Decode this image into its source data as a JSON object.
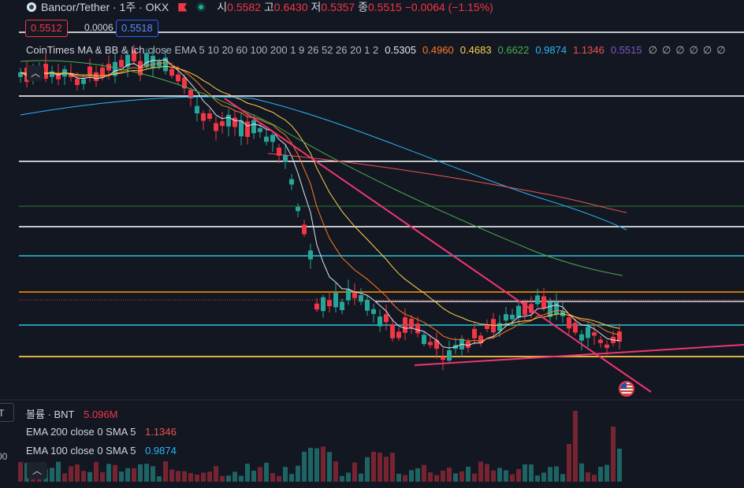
{
  "header": {
    "symbol": "Bancor/Tether · 1주 · OKX",
    "open_label": "시",
    "open": "0.5582",
    "high_label": "고",
    "high": "0.6430",
    "low_label": "저",
    "low": "0.5357",
    "close_label": "종",
    "close": "0.5515",
    "change": "−0.0064 (−1.15%)"
  },
  "price_boxes": {
    "sell": "0.5512",
    "spread": "0.0006",
    "buy": "0.5518"
  },
  "indicator": {
    "name": "CoinTimes MA & BB & Ich",
    "params": "close EMA 5 10 20 60 100 200 1 9 26 52 26 20 1 2",
    "values": [
      "0.5305",
      "0.4960",
      "0.4683",
      "0.6622",
      "0.9874",
      "1.1346",
      "0.5515"
    ],
    "slashes": [
      "∅",
      "∅",
      "∅",
      "∅",
      "∅",
      "∅"
    ]
  },
  "volume_pane": {
    "volume_label": "볼륨 · BNT",
    "volume_value": "5.096M",
    "ema200_label": "EMA 200 close 0 SMA 5",
    "ema200_value": "1.1346",
    "ema100_label": "EMA 100 close 0 SMA 5",
    "ema100_value": "0.9874",
    "left_tab": "T",
    "left_scale": "00"
  },
  "icons": {
    "collapse": "chevron-up-icon",
    "event": "us-flag-icon"
  },
  "colors": {
    "bg": "#131722",
    "up": "#26a69a",
    "down": "#f23645",
    "ema5": "#e0e3eb",
    "ema10": "#ff7a21",
    "ema20": "#ffd24a",
    "ema60": "#4caf50",
    "ema100": "#29b6f6",
    "ema200": "#ef5350",
    "trendline": "#f0356e"
  },
  "chart_data": {
    "type": "candlestick",
    "series_name": "Bancor/Tether",
    "timeframe": "1주",
    "last": {
      "open": 0.5582,
      "high": 0.643,
      "low": 0.5357,
      "close": 0.5515,
      "change": -0.0064,
      "change_pct": -1.15
    },
    "ema": {
      "5": 0.5305,
      "10": 0.496,
      "20": 0.4683,
      "60": 0.6622,
      "100": 0.9874,
      "200": 1.1346
    },
    "volume_last": "5.096M"
  }
}
